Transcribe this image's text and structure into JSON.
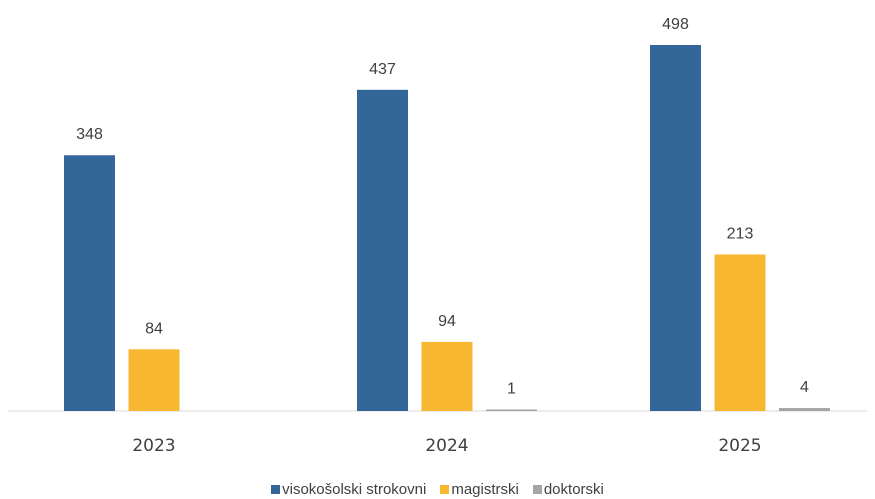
{
  "chart_data": {
    "type": "bar",
    "categories": [
      "2023",
      "2024",
      "2025"
    ],
    "series": [
      {
        "name": "visokošolski strokovni",
        "color": "#336699",
        "values": [
          348,
          437,
          498
        ]
      },
      {
        "name": "magistrski",
        "color": "#F7B731",
        "values": [
          84,
          94,
          213
        ]
      },
      {
        "name": "doktorski",
        "color": "#A5A5A5",
        "values": [
          null,
          1,
          4
        ]
      }
    ],
    "data_labels": true,
    "grid": false,
    "ylim": [
      0,
      498
    ],
    "legend_position": "bottom"
  }
}
